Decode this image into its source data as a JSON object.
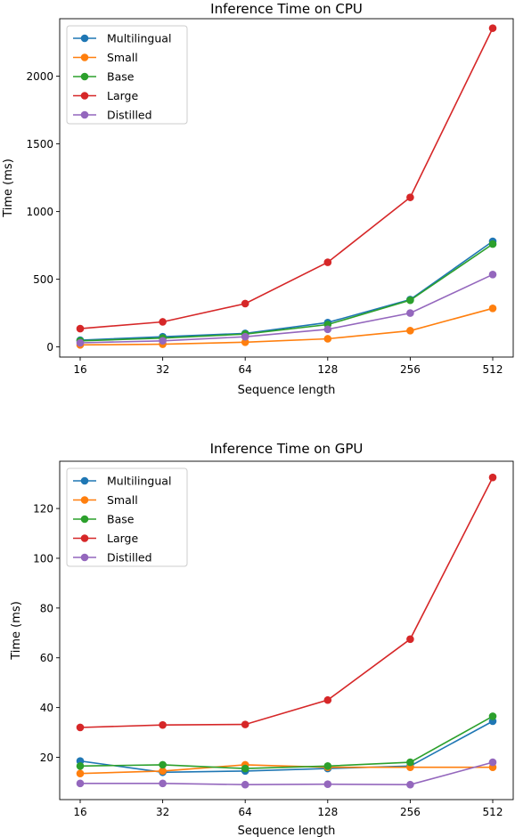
{
  "chart_data": [
    {
      "type": "line",
      "title": "Inference Time on CPU",
      "xlabel": "Sequence length",
      "ylabel": "Time (ms)",
      "x": [
        16,
        32,
        64,
        128,
        256,
        512
      ],
      "x_scale": "log2",
      "ylim": [
        -75,
        2425
      ],
      "yticks": [
        0,
        500,
        1000,
        1500,
        2000
      ],
      "grid": false,
      "legend": "top-left",
      "series": [
        {
          "name": "Multilingual",
          "color": "#1f77b4",
          "values": [
            50,
            75,
            100,
            180,
            350,
            780
          ]
        },
        {
          "name": "Small",
          "color": "#ff7f0e",
          "values": [
            15,
            20,
            35,
            60,
            120,
            285
          ]
        },
        {
          "name": "Base",
          "color": "#2ca02c",
          "values": [
            45,
            65,
            95,
            165,
            345,
            760
          ]
        },
        {
          "name": "Large",
          "color": "#d62728",
          "values": [
            135,
            185,
            320,
            625,
            1105,
            2355
          ]
        },
        {
          "name": "Distilled",
          "color": "#9467bd",
          "values": [
            30,
            45,
            75,
            130,
            250,
            535
          ]
        }
      ]
    },
    {
      "type": "line",
      "title": "Inference Time on GPU",
      "xlabel": "Sequence length",
      "ylabel": "Time (ms)",
      "x": [
        16,
        32,
        64,
        128,
        256,
        512
      ],
      "x_scale": "log2",
      "ylim": [
        3,
        139
      ],
      "yticks": [
        20,
        40,
        60,
        80,
        100,
        120
      ],
      "grid": false,
      "legend": "top-left",
      "series": [
        {
          "name": "Multilingual",
          "color": "#1f77b4",
          "values": [
            18.5,
            14,
            14.5,
            15.5,
            16.5,
            34.5
          ]
        },
        {
          "name": "Small",
          "color": "#ff7f0e",
          "values": [
            13.5,
            14.5,
            17,
            16,
            16,
            16
          ]
        },
        {
          "name": "Base",
          "color": "#2ca02c",
          "values": [
            16.5,
            17,
            15.5,
            16.5,
            18,
            36.5
          ]
        },
        {
          "name": "Large",
          "color": "#d62728",
          "values": [
            32,
            33,
            33.2,
            43,
            67.5,
            132.5
          ]
        },
        {
          "name": "Distilled",
          "color": "#9467bd",
          "values": [
            9.5,
            9.5,
            9,
            9.2,
            9,
            18
          ]
        }
      ]
    }
  ]
}
